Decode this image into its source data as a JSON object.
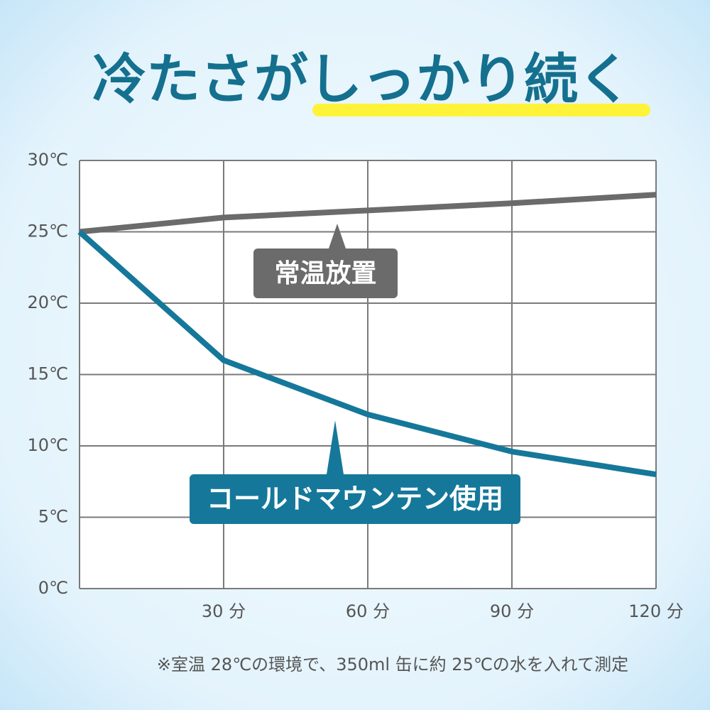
{
  "chart_data": {
    "type": "line",
    "title": "冷たさがしっかり続く",
    "x": [
      0,
      30,
      60,
      90,
      120
    ],
    "xlim": [
      0,
      120
    ],
    "xticks": [
      {
        "value": 30,
        "label": "30 分"
      },
      {
        "value": 60,
        "label": "60 分"
      },
      {
        "value": 90,
        "label": "90 分"
      },
      {
        "value": 120,
        "label": "120 分"
      }
    ],
    "ylim": [
      0,
      30
    ],
    "yticks": [
      {
        "value": 0,
        "label": "0℃"
      },
      {
        "value": 5,
        "label": "5℃"
      },
      {
        "value": 10,
        "label": "10℃"
      },
      {
        "value": 15,
        "label": "15℃"
      },
      {
        "value": 20,
        "label": "20℃"
      },
      {
        "value": 25,
        "label": "25℃"
      },
      {
        "value": 30,
        "label": "30℃"
      }
    ],
    "grid": true,
    "series": [
      {
        "name": "常温放置",
        "color": "#6b6b6b",
        "values": [
          25,
          26,
          26.5,
          27,
          27.6
        ]
      },
      {
        "name": "コールドマウンテン使用",
        "color": "#15789a",
        "values": [
          25,
          16,
          12.2,
          9.6,
          8
        ]
      }
    ],
    "note": "※室温 28℃の環境で、350ml 缶に約 25℃の水を入れて測定"
  }
}
